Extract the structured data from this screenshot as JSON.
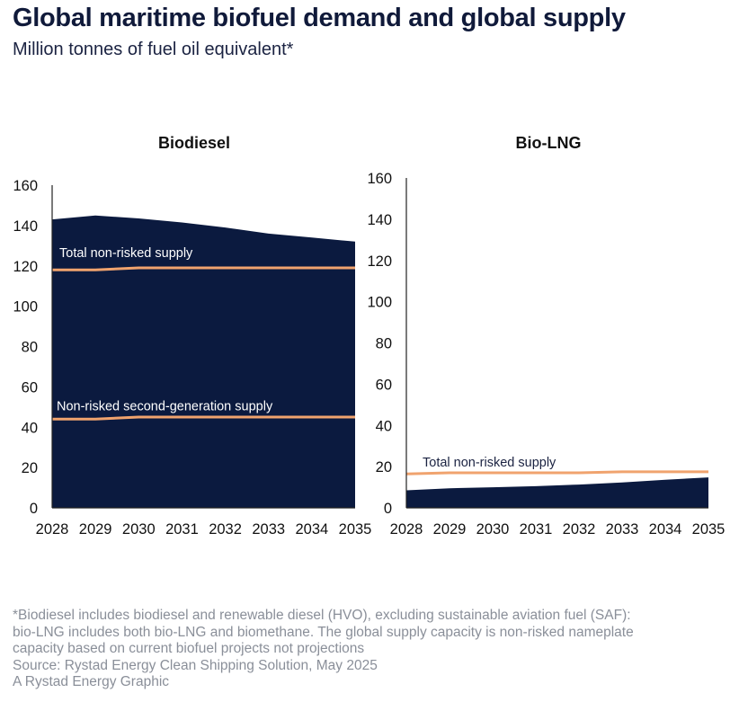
{
  "header": {
    "title": "Global maritime biofuel demand and global supply",
    "subtitle": "Million tonnes of fuel oil equivalent*"
  },
  "footnotes": {
    "lines": [
      "*Biodiesel includes biodiesel and renewable diesel (HVO), excluding sustainable aviation fuel (SAF):",
      "bio-LNG includes both bio-LNG and biomethane. The global supply capacity is non-risked nameplate",
      "capacity based on current biofuel projects not projections",
      "Source: Rystad Energy Clean Shipping Solution, May 2025",
      "A Rystad Energy Graphic"
    ]
  },
  "colors": {
    "demand_fill": "#0b1a3f",
    "supply_line": "#f0a36e",
    "axis_text": "#111111",
    "label_on_dark": "#ffffff",
    "label_on_light": "#1b2342"
  },
  "chart_data": [
    {
      "type": "area",
      "title": "Biodiesel",
      "x": [
        "2028",
        "2029",
        "2030",
        "2031",
        "2032",
        "2033",
        "2034",
        "2035"
      ],
      "ylim": [
        0,
        160
      ],
      "yticks": [
        "0",
        "20",
        "40",
        "60",
        "80",
        "100",
        "120",
        "140",
        "160"
      ],
      "grid": false,
      "series": [
        {
          "kind": "area",
          "values": [
            143,
            145,
            143.5,
            141.5,
            139,
            136,
            134,
            132
          ]
        },
        {
          "kind": "line",
          "values": [
            118,
            118,
            119,
            119,
            119,
            119,
            119,
            119
          ]
        },
        {
          "kind": "line",
          "values": [
            44,
            44,
            45,
            45,
            45,
            45,
            45,
            45
          ]
        }
      ],
      "annotations": [
        {
          "text": "Total non-risked supply",
          "series": 1
        },
        {
          "text": "Non-risked second-generation supply",
          "series": 2
        }
      ]
    },
    {
      "type": "area",
      "title": "Bio-LNG",
      "x": [
        "2028",
        "2029",
        "2030",
        "2031",
        "2032",
        "2033",
        "2034",
        "2035"
      ],
      "ylim": [
        0,
        160
      ],
      "yticks": [
        "0",
        "20",
        "40",
        "60",
        "80",
        "100",
        "120",
        "140",
        "160"
      ],
      "grid": false,
      "series": [
        {
          "kind": "area",
          "values": [
            8.5,
            9.5,
            10,
            10.5,
            11.3,
            12.3,
            13.6,
            14.8
          ]
        },
        {
          "kind": "line",
          "values": [
            16.5,
            17,
            17,
            17,
            17,
            17.5,
            17.5,
            17.5
          ]
        }
      ],
      "annotations": [
        {
          "text": "Total non-risked supply",
          "series": 1
        }
      ]
    }
  ]
}
